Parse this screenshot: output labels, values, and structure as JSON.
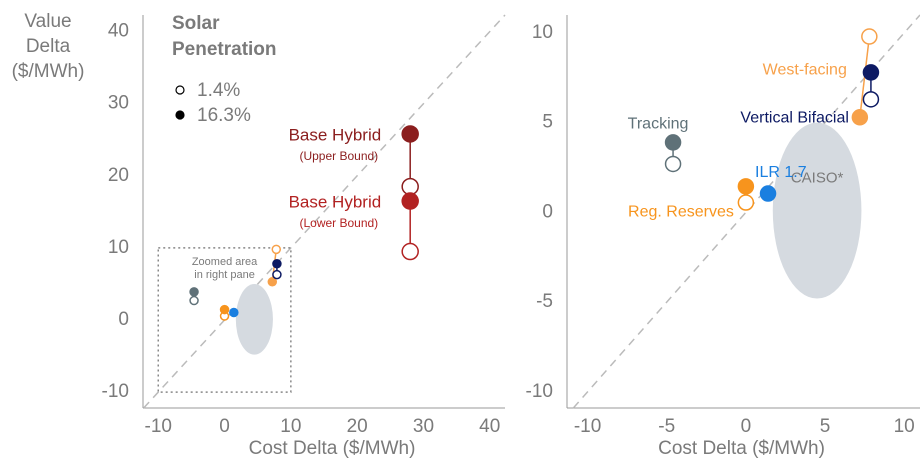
{
  "chart_data": [
    {
      "type": "scatter",
      "ylabel_lines": [
        "Value",
        "Delta",
        "($/MWh)"
      ],
      "xlabel": "Cost Delta ($/MWh)",
      "xlim": [
        -12.3,
        42.3
      ],
      "ylim": [
        -12.2,
        42.3
      ],
      "xticks": [
        -10,
        0,
        10,
        20,
        30,
        40
      ],
      "yticks": [
        -10,
        0,
        10,
        20,
        30,
        40
      ],
      "diagonal": true,
      "legend": {
        "title_lines": [
          "Solar",
          "Penetration"
        ],
        "entries": [
          "1.4%",
          "16.3%"
        ],
        "filled": [
          false,
          true
        ]
      },
      "zoom_box": {
        "xlim": [
          -10,
          10
        ],
        "ylim": [
          -10,
          10
        ],
        "label_lines": [
          "Zoomed area",
          "in right pane"
        ]
      },
      "series": [
        {
          "name": "Base Hybrid",
          "bound": "(Upper Bound)",
          "color": "#8b1e1e",
          "x": [
            28,
            28
          ],
          "values": [
            18.5,
            25.8
          ],
          "filled": [
            false,
            true
          ]
        },
        {
          "name": "Base Hybrid",
          "bound": "(Lower Bound)",
          "color": "#b22222",
          "x": [
            28,
            28
          ],
          "values": [
            9.5,
            16.5
          ],
          "filled": [
            false,
            true
          ]
        }
      ]
    },
    {
      "type": "scatter",
      "xlabel": "Cost Delta ($/MWh)",
      "xlim": [
        -11.3,
        11
      ],
      "ylim": [
        -10.9,
        11
      ],
      "xticks": [
        -10,
        -5,
        0,
        5,
        10
      ],
      "yticks": [
        -10,
        -5,
        0,
        5,
        10
      ],
      "diagonal": true,
      "region": {
        "name": "CAISO*",
        "color": "#d5dae0",
        "cx": 4.5,
        "cy": 0.1,
        "rx": 2.8,
        "ry": 4.9
      },
      "series": [
        {
          "name": "Tracking",
          "color": "#5f7178",
          "x": [
            -4.6,
            -4.6
          ],
          "values": [
            2.7,
            3.9
          ],
          "filled": [
            false,
            true
          ]
        },
        {
          "name": "ILR 1.7",
          "color": "#1a7fe0",
          "x": [
            1.4
          ],
          "values": [
            1.05
          ],
          "filled": [
            true
          ]
        },
        {
          "name": "Reg. Reserves",
          "color": "#f7941d",
          "x": [
            0,
            0
          ],
          "values": [
            0.55,
            1.45
          ],
          "filled": [
            false,
            true
          ]
        },
        {
          "name": "West-facing",
          "color": "#f7a14a",
          "x": [
            7.8,
            7.2
          ],
          "values": [
            9.8,
            5.3
          ],
          "filled": [
            false,
            true
          ]
        },
        {
          "name": "Vertical Bifacial",
          "color": "#0d1a63",
          "x": [
            7.9,
            7.9
          ],
          "values": [
            6.3,
            7.8
          ],
          "filled": [
            false,
            true
          ]
        }
      ]
    }
  ]
}
